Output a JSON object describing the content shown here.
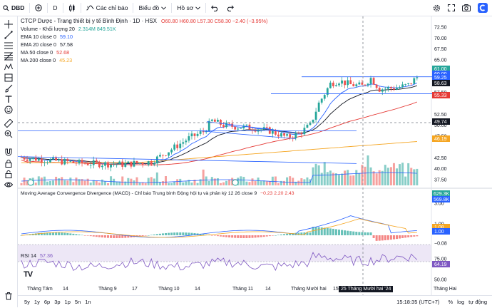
{
  "toolbar": {
    "symbol": "DBD",
    "interval": "D",
    "indicators_label": "Các chỉ báo",
    "chart_type_label": "Biểu đồ",
    "profile_label": "Hồ sơ"
  },
  "legend": {
    "title": "CTCP Dược - Trang thiết bị y tế Bình Định · 1D · HSX",
    "ohlc": "O60.80 H60.80 L57.30 C58.30 −2.40 (−3.95%)",
    "volume_label": "Volume - Khối lượng 20",
    "volume_values": "2.314M  849.51K",
    "ema10_label": "EMA 10 close 0",
    "ema10_value": "59.10",
    "ema20_label": "EMA 20 close 0",
    "ema20_value": "57.58",
    "ma50_label": "MA 50 close 0",
    "ma50_value": "52.68",
    "ma200_label": "MA 200 close 0",
    "ma200_value": "45.23"
  },
  "macd": {
    "title": "Moving Average Convergence Divergence (MACD) - Chỉ báo Trung bình Động hội tụ và phân kỳ 12 26 close 9",
    "values": "−0.23  2.20  2.43",
    "scale": [
      "3.00",
      "1.00",
      "−0.08"
    ]
  },
  "rsi": {
    "label": "RSI 14",
    "value": "57.36",
    "scale": [
      "75.00",
      "50.00"
    ]
  },
  "price_scale": [
    "72.50",
    "70.00",
    "67.50",
    "65.00",
    "62.50",
    "57.50",
    "52.50",
    "50.00",
    "47.50",
    "42.50",
    "40.00",
    "37.50"
  ],
  "price_tags": [
    {
      "text": "61.00",
      "color": "#26a69a"
    },
    {
      "text": "60.00",
      "color": "#2962ff"
    },
    {
      "text": "59.25",
      "color": "#2962ff"
    },
    {
      "text": "58.63",
      "color": "#131722"
    },
    {
      "text": "55.33",
      "color": "#e53935"
    },
    {
      "text": "49.74",
      "color": "#131722"
    },
    {
      "text": "46.19",
      "color": "#f5a623"
    },
    {
      "text": "1.08",
      "color": "#f5a623"
    },
    {
      "text": "1.00",
      "color": "#2962ff"
    },
    {
      "text": "64.19",
      "color": "#7e57c2"
    }
  ],
  "volume_tags": [
    {
      "text": "629.3K",
      "color": "#26a69a"
    },
    {
      "text": "569.8K",
      "color": "#2962ff"
    }
  ],
  "time_axis": [
    "Tháng Tám",
    "14",
    "Tháng 9",
    "17",
    "Tháng 10",
    "14",
    "Tháng 11",
    "14",
    "Tháng Mười hai",
    "15",
    "Tháng Hai"
  ],
  "crosshair_date": "25 Tháng Mười hai '24",
  "bottom": {
    "ranges": [
      "5y",
      "1y",
      "6p",
      "3p",
      "1p",
      "5n",
      "1n"
    ],
    "clock": "15:18:35 (UTC+7)",
    "percent": "%",
    "log": "log",
    "auto": "tự động"
  },
  "logo_text": "TV",
  "colors": {
    "up": "#26a69a",
    "down": "#ef5350",
    "blue": "#2962ff"
  }
}
